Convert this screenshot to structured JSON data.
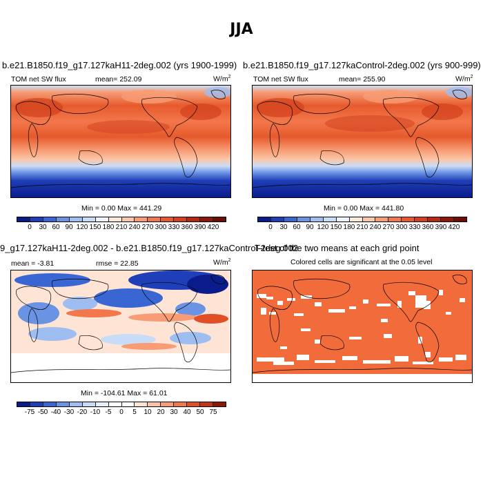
{
  "figure": {
    "title": "JJA"
  },
  "panels": {
    "top_left": {
      "title": "b.e21.B1850.f19_g17.127kaH11-2deg.002 (yrs 1900-1999)",
      "variable": "TOM net SW flux",
      "mean_label": "mean=",
      "mean_value": "252.09",
      "units": "W/m",
      "units_exp": "2",
      "minmax": "Min =   0.00 Max = 441.29"
    },
    "top_right": {
      "title": "b.e21.B1850.f19_g17.127kaControl-2deg.002 (yrs 900-999)",
      "variable": "TOM net SW flux",
      "mean_label": "mean=",
      "mean_value": "255.90",
      "units": "W/m",
      "units_exp": "2",
      "minmax": "Min =   0.00 Max = 441.80"
    },
    "bottom_left": {
      "title": "9_g17.127kaH11-2deg.002 - b.e21.B1850.f19_g17.127kaControl-2deg.002",
      "mean_text": "mean =  -3.81",
      "rmse_text": "rmse =  22.85",
      "units": "W/m",
      "units_exp": "2",
      "minmax": "Min = -104.61 Max =  61.01"
    },
    "bottom_right": {
      "title": "T-test of the two means at each grid point",
      "subtitle": "Colored cells are significant at the 0.05 level",
      "significant_color": "#f26b3a"
    }
  },
  "colorbars": {
    "absolute": {
      "labels": [
        "0",
        "30",
        "60",
        "90",
        "120",
        "150",
        "180",
        "210",
        "240",
        "270",
        "300",
        "330",
        "360",
        "390",
        "420"
      ],
      "colors": [
        "#0a1c8c",
        "#1f3fb8",
        "#3a66d4",
        "#6a93e4",
        "#9ebdf0",
        "#c9dcf7",
        "#eef3fb",
        "#fde9dc",
        "#fbc6a8",
        "#f79c74",
        "#f2774b",
        "#e65a2d",
        "#d2401d",
        "#b52a12",
        "#8e170a",
        "#6e0d05"
      ]
    },
    "difference": {
      "labels": [
        "-75",
        "-50",
        "-40",
        "-30",
        "-20",
        "-10",
        "-5",
        "0",
        "5",
        "10",
        "20",
        "30",
        "40",
        "50",
        "75"
      ],
      "colors": [
        "#0a1c8c",
        "#1f3fb8",
        "#3a66d4",
        "#6a93e4",
        "#9ebdf0",
        "#c9dcf7",
        "#e6eefb",
        "#ffffff",
        "#ffffff",
        "#fde4d4",
        "#fbc2a4",
        "#f79c74",
        "#f2774b",
        "#e04f26",
        "#c23517",
        "#8e170a"
      ]
    }
  }
}
